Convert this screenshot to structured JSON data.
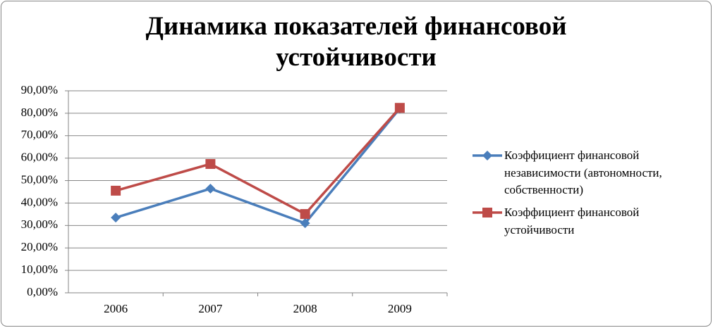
{
  "chart_data": {
    "type": "line",
    "title": "Динамика показателей финансовой устойчивости",
    "categories": [
      "2006",
      "2007",
      "2008",
      "2009"
    ],
    "series": [
      {
        "name": "Коэффициент финансовой независимости (автономности, собственности)",
        "color": "#4a7ebb",
        "marker": "diamond",
        "values": [
          33.5,
          46.4,
          31.0,
          82.1
        ]
      },
      {
        "name": "Коэффициент финансовой устойчивости",
        "color": "#be4b48",
        "marker": "square",
        "values": [
          45.5,
          57.4,
          35.1,
          82.4
        ]
      }
    ],
    "ylim": [
      0,
      90
    ],
    "yticks": [
      {
        "value": 0,
        "label": "0,00%"
      },
      {
        "value": 10,
        "label": "10,00%"
      },
      {
        "value": 20,
        "label": "20,00%"
      },
      {
        "value": 30,
        "label": "30,00%"
      },
      {
        "value": 40,
        "label": "40,00%"
      },
      {
        "value": 50,
        "label": "50,00%"
      },
      {
        "value": 60,
        "label": "60,00%"
      },
      {
        "value": 70,
        "label": "70,00%"
      },
      {
        "value": 80,
        "label": "80,00%"
      },
      {
        "value": 90,
        "label": "90,00%"
      }
    ],
    "grid": true,
    "legend": "right"
  }
}
